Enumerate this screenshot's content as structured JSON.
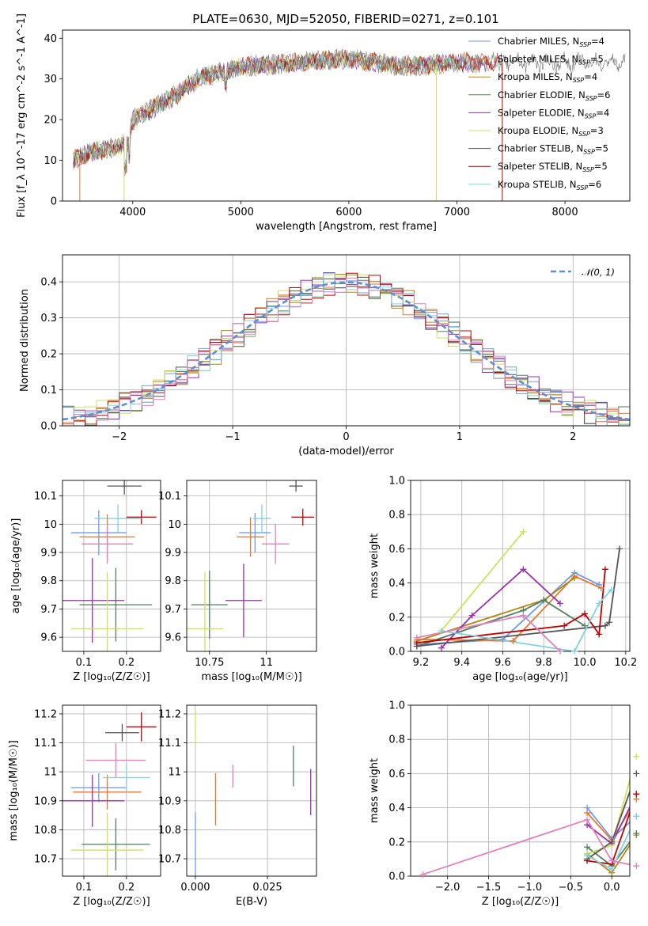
{
  "figure": {
    "title": "PLATE=0630, MJD=52050, FIBERID=0271, z=0.101"
  },
  "models": [
    {
      "name": "Chabrier MILES",
      "nssp": "4",
      "color": "#6e9be8"
    },
    {
      "name": "Salpeter MILES",
      "nssp": "5",
      "color": "#e8772e"
    },
    {
      "name": "Kroupa MILES",
      "nssp": "4",
      "color": "#b8860b"
    },
    {
      "name": "Chabrier ELODIE",
      "nssp": "6",
      "color": "#4f7f5f"
    },
    {
      "name": "Salpeter ELODIE",
      "nssp": "4",
      "color": "#9b2fae"
    },
    {
      "name": "Kroupa ELODIE",
      "nssp": "3",
      "color": "#cfe25a"
    },
    {
      "name": "Chabrier STELIB",
      "nssp": "5",
      "color": "#555555"
    },
    {
      "name": "Salpeter STELIB",
      "nssp": "5",
      "color": "#c00000"
    },
    {
      "name": "Kroupa STELIB",
      "nssp": "6",
      "color": "#7fd3e0"
    }
  ],
  "chart_data": [
    {
      "id": "spectrum",
      "type": "line",
      "xlabel": "wavelength [Angstrom, rest frame]",
      "ylabel": "Flux [f_λ 10^-17 erg cm^-2 s^-1 A^-1]",
      "xlim": [
        3350,
        8600
      ],
      "ylim": [
        0,
        42
      ],
      "xticks": [
        4000,
        5000,
        6000,
        7000,
        8000
      ],
      "yticks": [
        0,
        10,
        20,
        30,
        40
      ],
      "legend_position": "right",
      "continuum": {
        "x": [
          3450,
          3600,
          3800,
          3950,
          4000,
          4200,
          4400,
          4600,
          5000,
          5500,
          6000,
          6500,
          7000,
          7300
        ],
        "y": [
          10,
          12,
          13,
          14,
          20,
          23,
          26,
          30,
          33,
          34,
          35,
          33,
          34,
          34
        ]
      }
    },
    {
      "id": "residuals",
      "type": "line",
      "xlabel": "(data-model)/error",
      "ylabel": "Normed distribution",
      "xlim": [
        -2.5,
        2.5
      ],
      "ylim": [
        0,
        0.475
      ],
      "xticks": [
        -2,
        -1,
        0,
        1,
        2
      ],
      "yticks": [
        0.0,
        0.1,
        0.2,
        0.3,
        0.4
      ],
      "legend": "𝒩(0, 1)",
      "legend_position": "top-right",
      "grid": true
    },
    {
      "id": "age_vs_Z",
      "type": "scatter",
      "xlabel": "Z [log₁₀(Z/Z☉)]",
      "ylabel": "age  [log₁₀(age/yr)]",
      "xlim": [
        0.05,
        0.28
      ],
      "ylim": [
        9.55,
        10.155
      ],
      "xticks": [
        0.1,
        0.2
      ],
      "yticks": [
        9.6,
        9.7,
        9.8,
        9.9,
        10.0,
        10.1
      ],
      "grid": true,
      "points": [
        {
          "x": 0.135,
          "xerr": 0.065,
          "y": 9.97,
          "yerr": 0.08
        },
        {
          "x": 0.155,
          "xerr": 0.065,
          "y": 9.955,
          "yerr": 0.08
        },
        {
          "x": 0.155,
          "xerr": 0.06,
          "y": 9.93,
          "yerr": 0.07
        },
        {
          "x": 0.175,
          "xerr": 0.085,
          "y": 9.715,
          "yerr": 0.13
        },
        {
          "x": 0.12,
          "xerr": 0.075,
          "y": 9.73,
          "yerr": 0.15
        },
        {
          "x": 0.155,
          "xerr": 0.085,
          "y": 9.63,
          "yerr": 0.2
        },
        {
          "x": 0.195,
          "xerr": 0.04,
          "y": 10.135,
          "yerr": 0.03
        },
        {
          "x": 0.235,
          "xerr": 0.035,
          "y": 10.025,
          "yerr": 0.025
        },
        {
          "x": 0.18,
          "xerr": 0.055,
          "y": 10.02,
          "yerr": 0.05
        }
      ]
    },
    {
      "id": "age_vs_mass",
      "type": "scatter",
      "xlabel": "mass [log₁₀(M/M☉)]",
      "ylabel": "",
      "xlim": [
        10.65,
        11.22
      ],
      "ylim": [
        9.55,
        10.155
      ],
      "xticks": [
        10.75,
        11.0
      ],
      "yticks": [
        9.6,
        9.7,
        9.8,
        9.9,
        10.0,
        10.1
      ],
      "grid": true,
      "points": [
        {
          "x": 10.95,
          "xerr": 0.07,
          "y": 9.97,
          "yerr": 0.07
        },
        {
          "x": 10.93,
          "xerr": 0.06,
          "y": 9.955,
          "yerr": 0.07
        },
        {
          "x": 11.04,
          "xerr": 0.06,
          "y": 9.93,
          "yerr": 0.07
        },
        {
          "x": 10.75,
          "xerr": 0.08,
          "y": 9.715,
          "yerr": 0.12
        },
        {
          "x": 10.9,
          "xerr": 0.08,
          "y": 9.73,
          "yerr": 0.13
        },
        {
          "x": 10.73,
          "xerr": 0.08,
          "y": 9.63,
          "yerr": 0.2
        },
        {
          "x": 11.13,
          "xerr": 0.03,
          "y": 10.135,
          "yerr": 0.02
        },
        {
          "x": 11.16,
          "xerr": 0.05,
          "y": 10.025,
          "yerr": 0.03
        },
        {
          "x": 10.98,
          "xerr": 0.04,
          "y": 10.02,
          "yerr": 0.05
        }
      ]
    },
    {
      "id": "weight_vs_age",
      "type": "line",
      "xlabel": "age  [log₁₀(age/yr)]",
      "ylabel": "mass weight",
      "xlim": [
        9.15,
        10.22
      ],
      "ylim": [
        0,
        1
      ],
      "xticks": [
        9.2,
        9.4,
        9.6,
        9.8,
        10.0,
        10.2
      ],
      "yticks": [
        0.0,
        0.2,
        0.4,
        0.6,
        0.8,
        1.0
      ],
      "grid": true,
      "series": [
        {
          "x": [
            9.18,
            9.6,
            9.95,
            10.07
          ],
          "y": [
            0.04,
            0.07,
            0.46,
            0.39
          ]
        },
        {
          "x": [
            9.18,
            9.65,
            9.95,
            10.08
          ],
          "y": [
            0.07,
            0.06,
            0.44,
            0.37
          ]
        },
        {
          "x": [
            9.18,
            9.8,
            9.95
          ],
          "y": [
            0.06,
            0.3,
            0.43
          ]
        },
        {
          "x": [
            9.18,
            9.7,
            9.8,
            10.0
          ],
          "y": [
            0.03,
            0.24,
            0.3,
            0.15
          ]
        },
        {
          "x": [
            9.3,
            9.45,
            9.7,
            9.88
          ],
          "y": [
            0.02,
            0.21,
            0.48,
            0.28
          ]
        },
        {
          "x": [
            9.3,
            9.7
          ],
          "y": [
            0.12,
            0.7
          ]
        },
        {
          "x": [
            9.18,
            10.1,
            10.12,
            10.17
          ],
          "y": [
            0.03,
            0.15,
            0.17,
            0.6
          ]
        },
        {
          "x": [
            9.18,
            9.9,
            10.0,
            10.07,
            10.1
          ],
          "y": [
            0.05,
            0.15,
            0.22,
            0.1,
            0.48
          ]
        },
        {
          "x": [
            9.3,
            9.95,
            10.07,
            10.13
          ],
          "y": [
            0.12,
            0.0,
            0.28,
            0.36
          ]
        },
        {
          "x": [
            9.18,
            9.7,
            9.88
          ],
          "y": [
            0.08,
            0.21,
            0.0
          ]
        }
      ]
    },
    {
      "id": "mass_vs_Z",
      "type": "scatter",
      "xlabel": "Z [log₁₀(Z/Z☉)]",
      "ylabel": "mass [log₁₀(M/M☉)]",
      "xlim": [
        0.05,
        0.28
      ],
      "ylim": [
        10.64,
        11.23
      ],
      "xticks": [
        0.1,
        0.2
      ],
      "yticks": [
        10.7,
        10.8,
        10.9,
        11.0,
        11.1,
        11.2
      ],
      "grid": true,
      "points": [
        {
          "x": 0.135,
          "xerr": 0.065,
          "y": 10.945,
          "yerr": 0.05
        },
        {
          "x": 0.155,
          "xerr": 0.08,
          "y": 10.93,
          "yerr": 0.06
        },
        {
          "x": 0.175,
          "xerr": 0.07,
          "y": 11.04,
          "yerr": 0.06
        },
        {
          "x": 0.175,
          "xerr": 0.08,
          "y": 10.75,
          "yerr": 0.09
        },
        {
          "x": 0.12,
          "xerr": 0.075,
          "y": 10.9,
          "yerr": 0.09
        },
        {
          "x": 0.155,
          "xerr": 0.085,
          "y": 10.73,
          "yerr": 0.13
        },
        {
          "x": 0.19,
          "xerr": 0.04,
          "y": 11.135,
          "yerr": 0.03
        },
        {
          "x": 0.235,
          "xerr": 0.035,
          "y": 11.155,
          "yerr": 0.05
        },
        {
          "x": 0.2,
          "xerr": 0.055,
          "y": 10.98,
          "yerr": 0.05
        }
      ]
    },
    {
      "id": "mass_vs_ebv",
      "type": "scatter",
      "xlabel": "E(B-V)",
      "ylabel": "",
      "xlim": [
        -0.003,
        0.042
      ],
      "ylim": [
        10.64,
        11.23
      ],
      "xticks": [
        0.0,
        0.025
      ],
      "yticks": [
        10.7,
        10.8,
        10.9,
        11.0,
        11.1,
        11.2
      ],
      "grid": true,
      "points": [
        {
          "x": 0.0,
          "y": 10.73,
          "yerr": 0.13
        },
        {
          "x": 0.007,
          "y": 10.905,
          "yerr": 0.09
        },
        {
          "x": 0.013,
          "y": 10.985,
          "yerr": 0.04
        },
        {
          "x": 0.034,
          "y": 11.02,
          "yerr": 0.07
        },
        {
          "x": 0.04,
          "y": 10.93,
          "yerr": 0.08
        },
        {
          "x": 0.0,
          "y": 11.15,
          "yerr": 0.06
        }
      ]
    },
    {
      "id": "weight_vs_Z",
      "type": "line",
      "xlabel": "Z [log₁₀(Z/Z☉)]",
      "ylabel": "mass weight",
      "xlim": [
        -2.45,
        0.22
      ],
      "ylim": [
        0,
        1
      ],
      "xticks": [
        -2.0,
        -1.5,
        -1.0,
        -0.5,
        0.0
      ],
      "yticks": [
        0.0,
        0.2,
        0.4,
        0.6,
        0.8,
        1.0
      ],
      "grid": true,
      "series": [
        {
          "x": [
            -0.3,
            0.0,
            0.3
          ],
          "y": [
            0.4,
            0.22,
            0.35
          ]
        },
        {
          "x": [
            -0.3,
            0.0,
            0.3
          ],
          "y": [
            0.37,
            0.21,
            0.45
          ]
        },
        {
          "x": [
            -0.3,
            0.0,
            0.3
          ],
          "y": [
            0.13,
            0.02,
            0.24
          ]
        },
        {
          "x": [
            -0.3,
            0.0,
            0.3
          ],
          "y": [
            0.17,
            0.06,
            0.25
          ]
        },
        {
          "x": [
            -0.3,
            0.0,
            0.3
          ],
          "y": [
            0.3,
            0.19,
            0.48
          ]
        },
        {
          "x": [
            -0.3,
            0.0,
            0.3
          ],
          "y": [
            0.13,
            0.18,
            0.7
          ]
        },
        {
          "x": [
            -0.3,
            0.0,
            0.3
          ],
          "y": [
            0.1,
            0.2,
            0.6
          ]
        },
        {
          "x": [
            -0.3,
            0.0,
            0.3
          ],
          "y": [
            0.09,
            0.07,
            0.48
          ]
        },
        {
          "x": [
            -0.3,
            0.0,
            0.3
          ],
          "y": [
            0.12,
            0.04,
            0.35
          ]
        },
        {
          "x": [
            -2.3,
            -0.3,
            0.0,
            0.3
          ],
          "y": [
            0.01,
            0.33,
            0.09,
            0.06
          ]
        }
      ]
    }
  ]
}
